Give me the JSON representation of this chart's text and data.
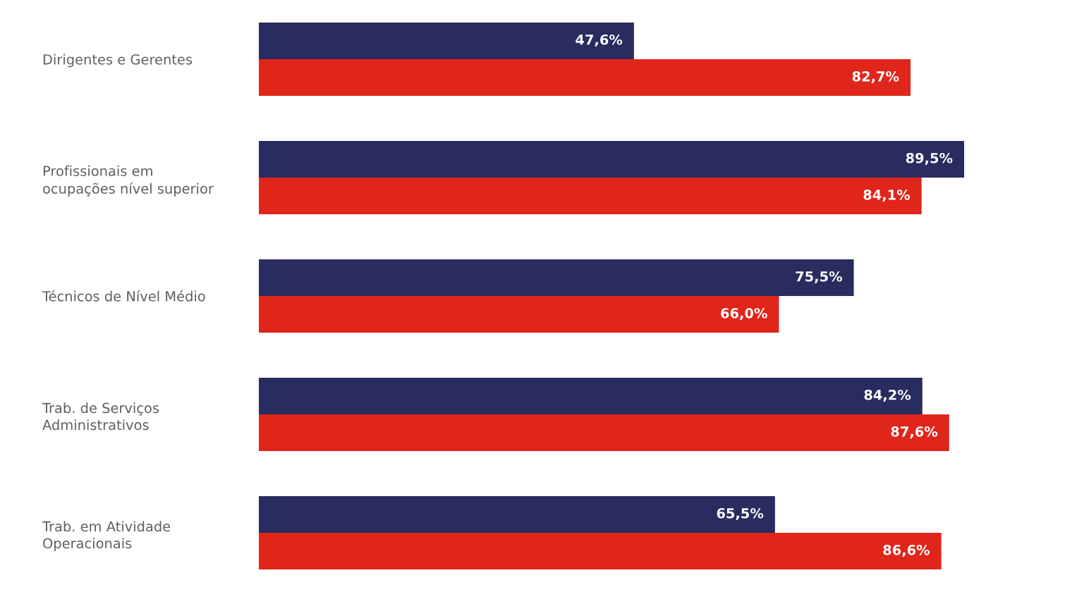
{
  "chart_data": {
    "type": "bar",
    "orientation": "horizontal",
    "tick_labels": "y",
    "categories": [
      "Dirigentes e Gerentes",
      "Profissionais em\nocupações nível superior",
      "Técnicos de Nível Médio",
      "Trab. de Serviços\nAdministrativos",
      "Trab. em Atividade\nOperacionais"
    ],
    "series": [
      {
        "color": "#282c5e",
        "values": [
          47.6,
          89.5,
          75.5,
          84.2,
          65.5
        ],
        "value_labels": [
          "47,6%",
          "89,5%",
          "75,5%",
          "84,2%",
          "65,5%"
        ]
      },
      {
        "color": "#e0251b",
        "values": [
          82.7,
          84.1,
          66.0,
          87.6,
          86.6
        ],
        "value_labels": [
          "82,7%",
          "84,1%",
          "66,0%",
          "87,6%",
          "86,6%"
        ]
      }
    ]
  }
}
